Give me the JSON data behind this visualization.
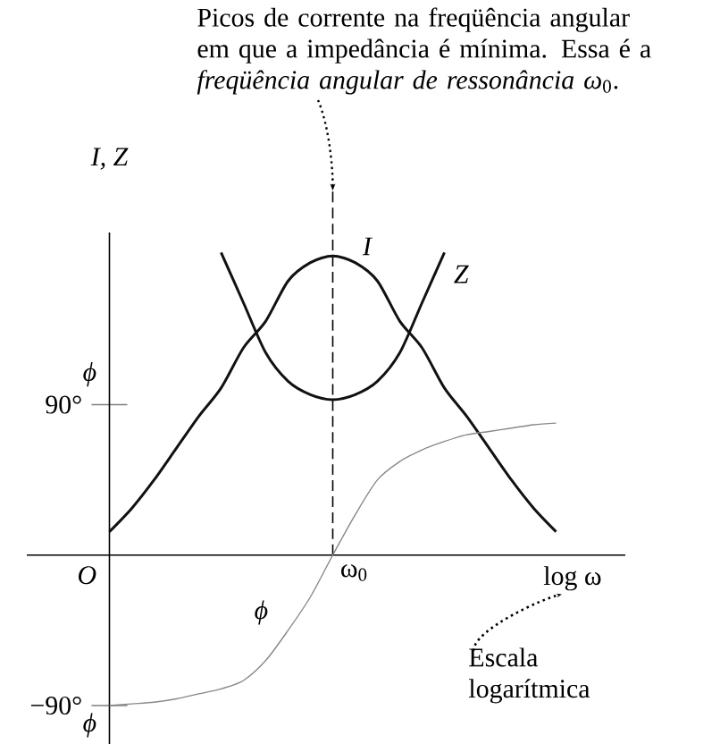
{
  "chart_data": {
    "type": "line",
    "xlabel": "log ω",
    "ylabel": "I, Z",
    "categories": [
      null,
      null,
      null,
      null,
      null,
      null,
      null,
      null,
      null,
      null,
      null,
      null,
      null,
      null,
      null,
      null,
      null,
      null,
      null,
      null,
      null
    ],
    "ylim": [
      -113,
      193
    ],
    "yticks": [
      {
        "value": -90,
        "label": "−90°"
      },
      {
        "value": 90,
        "label": "90°"
      }
    ],
    "series": [
      {
        "name": "I",
        "color": "#111111",
        "values": [
          14,
          28,
          45,
          64,
          83,
          100,
          124,
          140,
          164,
          175,
          179,
          175,
          164,
          140,
          124,
          100,
          83,
          64,
          45,
          28,
          14
        ]
      },
      {
        "name": "Z",
        "color": "#111111",
        "values": [
          null,
          null,
          null,
          null,
          null,
          181,
          151,
          121,
          104,
          96,
          93,
          96,
          104,
          121,
          151,
          181,
          null,
          null,
          null,
          null,
          null
        ]
      },
      {
        "name": "ϕ",
        "color": "#888888",
        "values": [
          -90,
          -89,
          -88,
          -86,
          -83,
          -80,
          -75,
          -63,
          -45,
          -25,
          0,
          24,
          45,
          56,
          63,
          68,
          72,
          74,
          76,
          78,
          79
        ]
      }
    ],
    "annotations": [
      "Picos de corrente na freqüência angular em que a impedância é mínima. Essa é a *freqüência angular de ressonância ω*$_{0}$.",
      "Escala logarítmica",
      "ϕ",
      "ϕ",
      "O",
      "ω$_{0}$"
    ]
  }
}
